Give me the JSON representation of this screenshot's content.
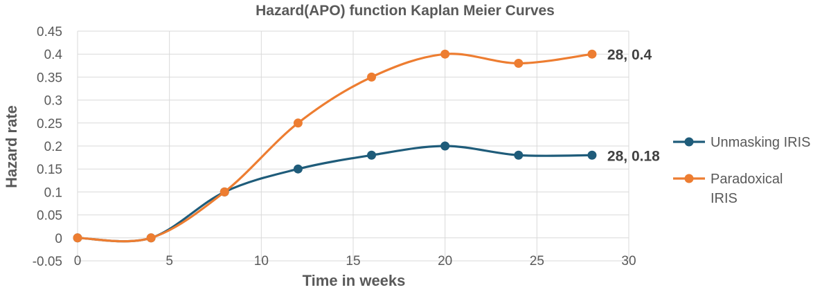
{
  "chart_data": {
    "type": "line",
    "title": "Hazard(APO) function Kaplan Meier Curves",
    "xlabel": "Time in weeks",
    "ylabel": "Hazard rate",
    "xlim": [
      0,
      30
    ],
    "ylim": [
      -0.05,
      0.45
    ],
    "x_ticks": [
      "0",
      "5",
      "10",
      "15",
      "20",
      "25",
      "30"
    ],
    "y_ticks": [
      "-0.05",
      "0",
      "0.05",
      "0.1",
      "0.15",
      "0.2",
      "0.25",
      "0.3",
      "0.35",
      "0.4",
      "0.45"
    ],
    "grid": true,
    "smooth": true,
    "legend_position": "right",
    "series": [
      {
        "name": "Unmasking IRIS",
        "color": "#1f5c7a",
        "x": [
          0,
          4,
          8,
          12,
          16,
          20,
          24,
          28
        ],
        "y": [
          0,
          0,
          0.1,
          0.15,
          0.18,
          0.2,
          0.18,
          0.18
        ],
        "end_label": "28, 0.18"
      },
      {
        "name": "Paradoxical IRIS",
        "color": "#ed7d31",
        "x": [
          0,
          4,
          8,
          12,
          16,
          20,
          24,
          28
        ],
        "y": [
          0,
          0,
          0.1,
          0.25,
          0.35,
          0.4,
          0.38,
          0.4
        ],
        "end_label": "28, 0.4"
      }
    ],
    "legend": [
      {
        "lines": [
          "Unmasking IRIS"
        ]
      },
      {
        "lines": [
          "Paradoxical",
          "IRIS"
        ]
      }
    ]
  }
}
